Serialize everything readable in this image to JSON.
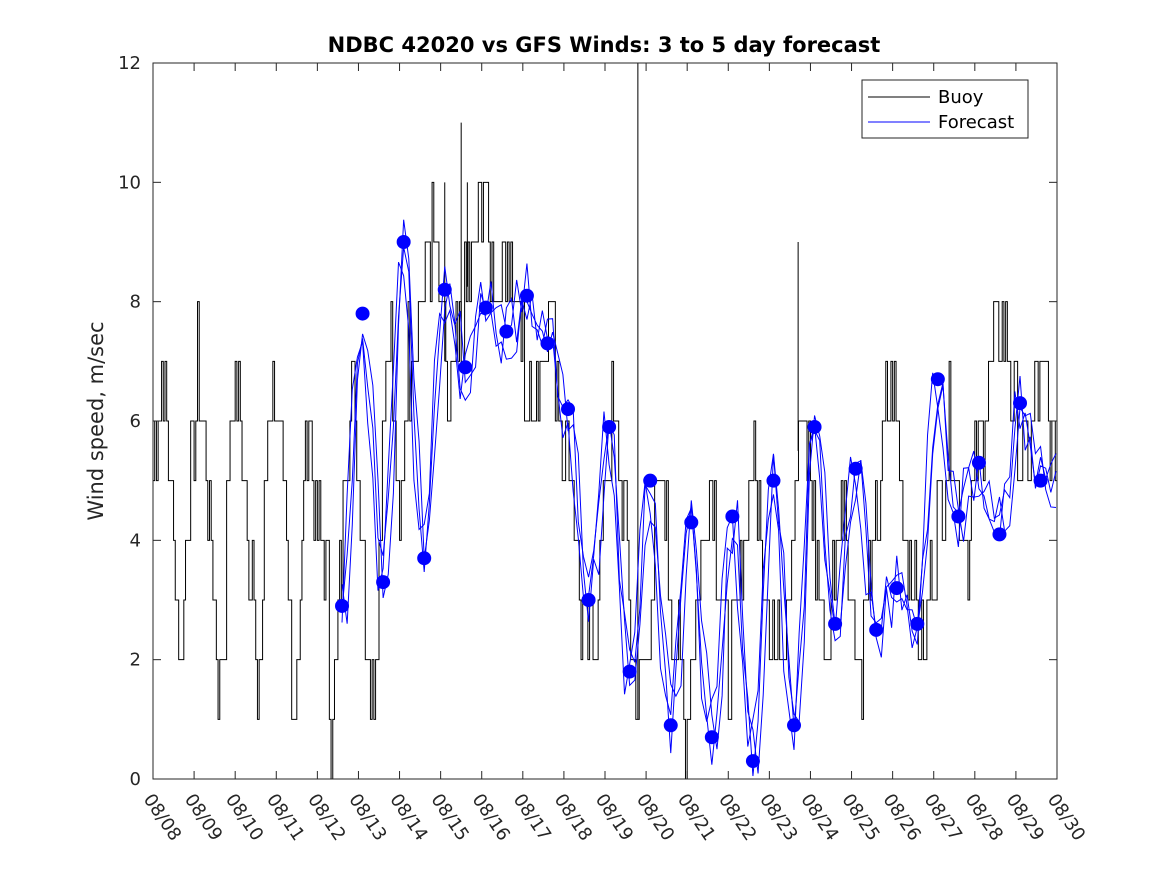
{
  "chart_data": {
    "type": "line",
    "title": "NDBC 42020 vs GFS Winds: 3 to 5 day forecast",
    "xlabel": "",
    "ylabel": "Wind speed, m/sec",
    "ylim": [
      0,
      12
    ],
    "yticks": [
      0,
      2,
      4,
      6,
      8,
      10,
      12
    ],
    "xlim_days": [
      0,
      22
    ],
    "xtick_labels": [
      "08/08",
      "08/09",
      "08/10",
      "08/11",
      "08/12",
      "08/13",
      "08/14",
      "08/15",
      "08/16",
      "08/17",
      "08/18",
      "08/19",
      "08/20",
      "08/21",
      "08/22",
      "08/23",
      "08/24",
      "08/25",
      "08/26",
      "08/27",
      "08/28",
      "08/29",
      "08/30"
    ],
    "legend": {
      "position": "top-right",
      "entries": [
        {
          "name": "Buoy",
          "color": "#000000"
        },
        {
          "name": "Forecast",
          "color": "#0000ff"
        }
      ]
    },
    "grid": false,
    "colors": {
      "buoy": "#000000",
      "forecast": "#0000ff",
      "axis": "#262626"
    },
    "buoy_step_nodes": {
      "day": [
        0.0,
        0.1,
        0.25,
        0.3,
        0.45,
        0.5,
        0.6,
        0.65,
        0.75,
        0.8,
        0.9,
        1.0,
        1.1,
        1.25,
        1.3,
        1.45,
        1.5,
        1.6,
        1.65,
        1.75,
        1.8,
        1.9,
        2.0,
        2.1,
        2.25,
        2.3,
        2.45,
        2.5,
        2.6,
        2.65,
        2.75,
        2.8,
        2.9,
        3.0,
        3.1,
        3.25,
        3.3,
        3.45,
        3.5,
        3.6,
        3.65,
        3.75,
        3.8,
        3.9,
        4.0,
        4.1,
        4.25,
        4.3,
        4.45,
        4.5,
        4.6,
        4.65,
        4.75,
        4.8,
        4.9,
        5.0,
        5.1,
        5.25,
        5.3,
        5.45,
        5.5,
        5.6,
        5.65,
        5.75,
        5.8,
        5.9,
        6.0,
        6.2,
        6.5,
        6.8,
        7.0,
        7.2,
        7.4,
        7.6,
        7.8,
        8.0,
        8.2,
        8.4,
        8.6,
        8.8,
        9.0,
        9.2,
        9.4,
        9.6,
        9.8,
        10.0,
        10.2,
        10.4,
        10.6,
        10.8,
        11.0,
        11.2,
        11.4,
        11.6,
        11.8,
        12.0,
        12.2,
        12.4,
        12.6,
        12.8,
        13.0,
        13.2,
        13.4,
        13.6,
        13.8,
        14.0,
        14.2,
        14.4,
        14.6,
        14.8,
        15.0,
        15.2,
        15.4,
        15.6,
        15.8,
        16.0,
        16.2,
        16.4,
        16.6,
        16.8,
        17.0,
        17.2,
        17.4,
        17.6,
        17.8,
        18.0,
        18.2,
        18.4,
        18.6,
        18.8,
        19.0,
        19.2,
        19.4,
        19.6,
        19.8,
        20.0,
        20.2,
        20.4,
        20.6,
        20.8,
        21.0,
        21.2,
        21.4,
        21.6,
        21.8,
        22.0
      ],
      "speed": [
        5,
        6,
        7,
        6,
        5,
        4,
        3,
        2,
        3,
        4,
        5,
        6,
        7,
        6,
        5,
        4,
        3,
        1,
        2,
        3,
        5,
        6,
        7,
        6,
        5,
        4,
        3,
        1,
        2,
        3,
        5,
        6,
        7,
        6,
        5,
        4,
        3,
        1,
        2,
        3,
        5,
        6,
        6,
        5,
        4,
        4,
        3,
        1,
        2,
        3,
        4,
        5,
        6,
        7,
        6,
        5,
        4,
        2,
        1,
        3,
        4,
        6,
        7,
        8,
        7,
        5,
        4,
        7,
        8,
        9,
        8,
        6,
        7,
        8,
        9,
        10,
        9,
        8,
        9,
        8,
        7,
        6,
        7,
        8,
        7,
        6,
        5,
        3,
        2,
        3,
        5,
        6,
        5,
        3,
        1,
        2,
        4,
        5,
        3,
        2,
        1,
        3,
        4,
        5,
        3,
        2,
        3,
        4,
        5,
        4,
        3,
        2,
        3,
        5,
        6,
        5,
        3,
        2,
        4,
        5,
        3,
        2,
        3,
        4,
        6,
        7,
        5,
        4,
        3,
        2,
        4,
        5,
        6,
        5,
        4,
        5,
        6,
        7,
        8,
        7,
        6,
        5,
        6,
        7,
        6,
        5
      ]
    },
    "buoy_spikes": [
      {
        "day": 7.5,
        "speed": 11
      },
      {
        "day": 11.8,
        "speed": 12
      },
      {
        "day": 15.7,
        "speed": 9
      },
      {
        "day": 7.1,
        "speed": 10
      },
      {
        "day": 7.65,
        "speed": 10
      }
    ],
    "forecast_anchor_points": {
      "day": [
        4.6,
        5.1,
        5.6,
        6.1,
        6.6,
        7.1,
        7.6,
        8.1,
        8.6,
        9.1,
        9.6,
        10.1,
        10.6,
        11.1,
        11.6,
        12.1,
        12.6,
        13.1,
        13.6,
        14.1,
        14.6,
        15.1,
        15.6,
        16.1,
        16.6,
        17.1,
        17.6,
        18.1,
        18.6,
        19.1,
        19.6,
        20.1,
        20.6,
        21.1,
        21.6
      ],
      "speed": [
        2.9,
        7.8,
        3.3,
        9.0,
        3.7,
        8.2,
        6.9,
        7.9,
        7.5,
        8.1,
        7.3,
        6.2,
        3.0,
        5.9,
        1.8,
        5.0,
        0.9,
        4.3,
        0.7,
        4.4,
        0.3,
        5.0,
        0.9,
        5.9,
        2.6,
        5.2,
        2.5,
        3.2,
        2.6,
        6.7,
        4.4,
        5.3,
        4.1,
        6.3,
        5.0
      ]
    },
    "forecast_run_offsets": [
      0.0,
      0.4,
      -0.35
    ],
    "forecast_markers": {
      "day": [
        4.6,
        5.1,
        5.6,
        6.1,
        6.6,
        7.1,
        7.6,
        8.1,
        8.6,
        9.1,
        9.6,
        10.1,
        10.6,
        11.1,
        11.6,
        12.1,
        12.6,
        13.1,
        13.6,
        14.1,
        14.6,
        15.1,
        15.6,
        16.1,
        16.6,
        17.1,
        17.6,
        18.1,
        18.6,
        19.1,
        19.6,
        20.1,
        20.6,
        21.1,
        21.6
      ],
      "speed": [
        2.9,
        7.8,
        3.3,
        9.0,
        3.7,
        8.2,
        6.9,
        7.9,
        7.5,
        8.1,
        7.3,
        6.2,
        3.0,
        5.9,
        1.8,
        5.0,
        0.9,
        4.3,
        0.7,
        4.4,
        0.3,
        5.0,
        0.9,
        5.9,
        2.6,
        5.2,
        2.5,
        3.2,
        2.6,
        6.7,
        4.4,
        5.3,
        4.1,
        6.3,
        5.0
      ]
    }
  }
}
